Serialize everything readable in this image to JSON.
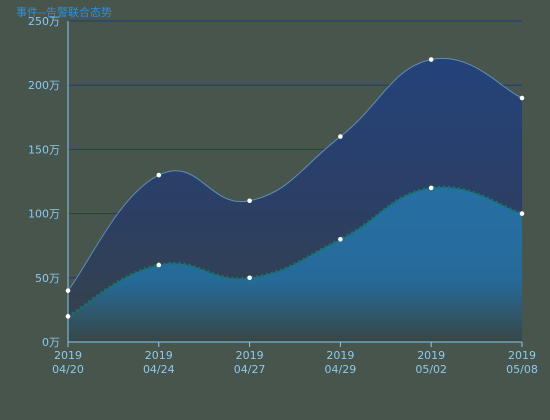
{
  "chart_data": {
    "type": "area",
    "title": "事件--告警联合态势",
    "categories": [
      [
        "2019",
        "04/20"
      ],
      [
        "2019",
        "04/24"
      ],
      [
        "2019",
        "04/27"
      ],
      [
        "2019",
        "04/29"
      ],
      [
        "2019",
        "05/02"
      ],
      [
        "2019",
        "05/08"
      ]
    ],
    "y_ticks": [
      "0万",
      "50万",
      "100万",
      "150万",
      "200万",
      "250万"
    ],
    "ylim": [
      0,
      2500000
    ],
    "grid": true,
    "series": [
      {
        "values": [
          400000,
          1300000,
          1100000,
          1600000,
          2200000,
          1900000
        ],
        "color": "#24427a",
        "line": "#5a8fc0"
      },
      {
        "values": [
          200000,
          600000,
          500000,
          800000,
          1200000,
          1000000
        ],
        "color": "#2a6fa0",
        "line": "#0b7a66"
      }
    ]
  }
}
